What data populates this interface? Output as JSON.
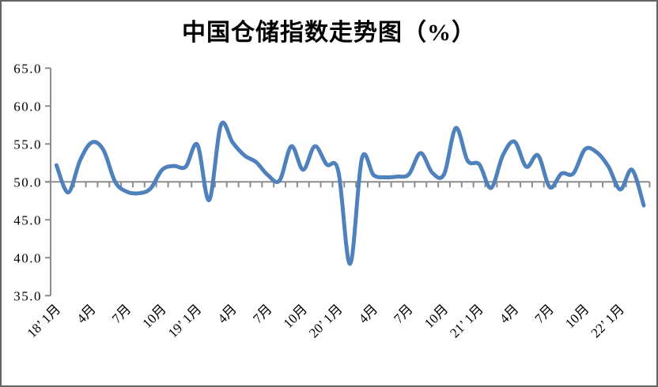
{
  "window": {
    "background_color": "#FFFFFF",
    "border_color": "#636363"
  },
  "chart_data": {
    "type": "line",
    "title": "中国仓储指数走势图（%）",
    "xlabel": "",
    "ylabel": "",
    "ylim": [
      35.0,
      65.0
    ],
    "ytick_step": 5.0,
    "y_tick_labels": [
      "65.0",
      "60.0",
      "55.0",
      "50.0",
      "45.0",
      "40.0",
      "35.0"
    ],
    "x_axis_cross_value": 50.0,
    "grid": false,
    "legend": "none",
    "line_color": "#4F81BD",
    "axis_color": "#8C8C8C",
    "smooth": true,
    "categories": [
      "2018-01",
      "2018-02",
      "2018-03",
      "2018-04",
      "2018-05",
      "2018-06",
      "2018-07",
      "2018-08",
      "2018-09",
      "2018-10",
      "2018-11",
      "2018-12",
      "2019-01",
      "2019-02",
      "2019-03",
      "2019-04",
      "2019-05",
      "2019-06",
      "2019-07",
      "2019-08",
      "2019-09",
      "2019-10",
      "2019-11",
      "2019-12",
      "2020-01",
      "2020-02",
      "2020-03",
      "2020-04",
      "2020-05",
      "2020-06",
      "2020-07",
      "2020-08",
      "2020-09",
      "2020-10",
      "2020-11",
      "2020-12",
      "2021-01",
      "2021-02",
      "2021-03",
      "2021-04",
      "2021-05",
      "2021-06",
      "2021-07",
      "2021-08",
      "2021-09",
      "2021-10",
      "2021-11",
      "2021-12",
      "2022-01",
      "2022-02",
      "2022-03"
    ],
    "series": [
      {
        "name": "中国仓储指数(%)",
        "values": [
          52.2,
          48.6,
          52.8,
          55.2,
          54.2,
          50.0,
          48.7,
          48.5,
          49.1,
          51.6,
          52.1,
          52.0,
          54.9,
          47.6,
          57.5,
          55.2,
          53.5,
          52.6,
          50.9,
          50.2,
          54.7,
          51.6,
          54.7,
          52.3,
          51.4,
          39.2,
          53.1,
          50.9,
          50.6,
          50.7,
          51.0,
          53.8,
          51.2,
          51.0,
          57.1,
          52.8,
          52.3,
          49.2,
          53.5,
          55.3,
          52.0,
          53.5,
          49.3,
          51.1,
          51.1,
          54.3,
          53.9,
          52.0,
          49.0,
          51.6,
          46.9
        ]
      }
    ],
    "x_tick_labels": [
      "18’ 1月",
      "4月",
      "7月",
      "10月",
      "19’ 1月",
      "4月",
      "7月",
      "10月",
      "20’ 1月",
      "4月",
      "7月",
      "10月",
      "21’ 1月",
      "4月",
      "7月",
      "10月",
      "22’ 1月"
    ],
    "x_tick_label_month_indices": [
      1,
      4,
      7,
      10,
      13,
      16,
      19,
      22,
      25,
      28,
      31,
      34,
      37,
      40,
      43,
      46,
      49
    ]
  }
}
